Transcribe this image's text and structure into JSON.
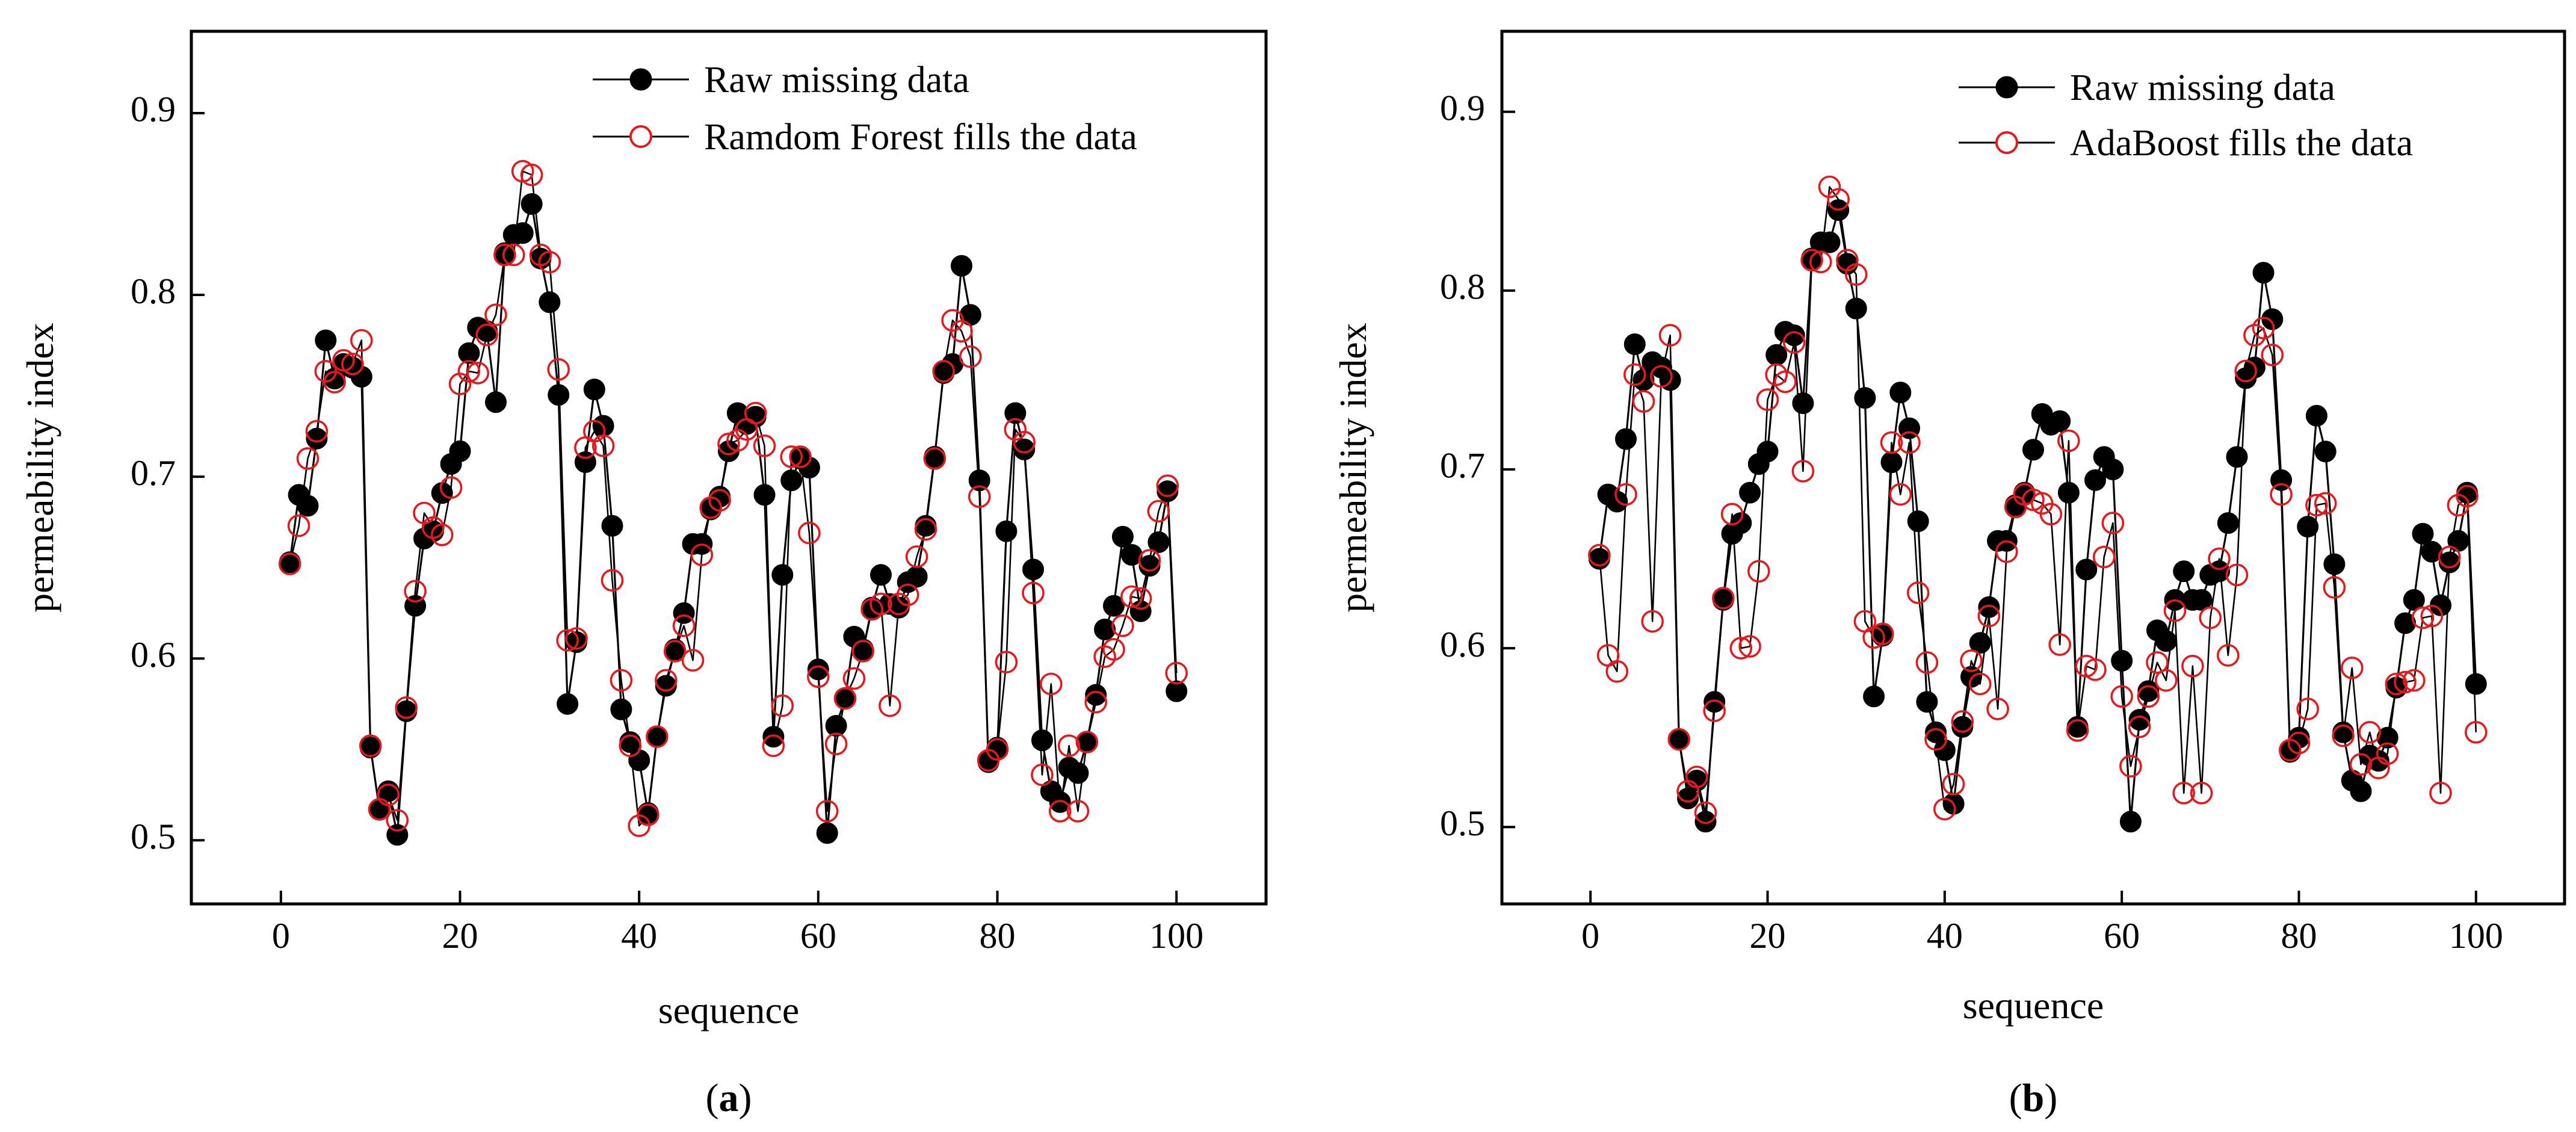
{
  "figure": {
    "panels": [
      {
        "label_open": "(",
        "label_letter": "a",
        "label_close": ")"
      },
      {
        "label_open": "(",
        "label_letter": "b",
        "label_close": ")"
      }
    ]
  },
  "chart_data": [
    {
      "type": "line",
      "title": "",
      "xlabel": "sequence",
      "ylabel": "permeability index",
      "xlim": [
        -10,
        110
      ],
      "ylim": [
        0.465,
        0.945
      ],
      "xticks": [
        0,
        20,
        40,
        60,
        80,
        100
      ],
      "yticks": [
        0.5,
        0.6,
        0.7,
        0.8,
        0.9
      ],
      "grid": false,
      "legend_position": "top-right",
      "x": [
        1,
        2,
        3,
        4,
        5,
        6,
        7,
        8,
        9,
        10,
        11,
        12,
        13,
        14,
        15,
        16,
        17,
        18,
        19,
        20,
        21,
        22,
        23,
        24,
        25,
        26,
        27,
        28,
        29,
        30,
        31,
        32,
        33,
        34,
        35,
        36,
        37,
        38,
        39,
        40,
        41,
        42,
        43,
        44,
        45,
        46,
        47,
        48,
        49,
        50,
        51,
        52,
        53,
        54,
        55,
        56,
        57,
        58,
        59,
        60,
        61,
        62,
        63,
        64,
        65,
        66,
        67,
        68,
        69,
        70,
        71,
        72,
        73,
        74,
        75,
        76,
        77,
        78,
        79,
        80,
        81,
        82,
        83,
        84,
        85,
        86,
        87,
        88,
        89,
        90,
        91,
        92,
        93,
        94,
        95,
        96,
        97,
        98,
        99,
        100
      ],
      "series": [
        {
          "name": "Raw missing data",
          "color": "#000000",
          "marker": "filled-circle",
          "values": [
            0.653,
            0.69,
            0.684,
            0.721,
            0.775,
            0.754,
            0.762,
            0.76,
            0.755,
            0.551,
            0.517,
            0.527,
            0.503,
            0.571,
            0.629,
            0.666,
            0.67,
            0.691,
            0.707,
            0.714,
            0.768,
            0.782,
            0.78,
            0.741,
            0.823,
            0.833,
            0.834,
            0.85,
            0.82,
            0.796,
            0.745,
            0.575,
            0.609,
            0.708,
            0.748,
            0.728,
            0.673,
            0.572,
            0.554,
            0.544,
            0.515,
            0.557,
            0.585,
            0.605,
            0.625,
            0.663,
            0.663,
            0.682,
            0.689,
            0.714,
            0.735,
            0.729,
            0.733,
            0.69,
            0.557,
            0.646,
            0.698,
            0.71,
            0.705,
            0.594,
            0.504,
            0.563,
            0.578,
            0.612,
            0.605,
            0.628,
            0.646,
            0.63,
            0.628,
            0.642,
            0.645,
            0.673,
            0.711,
            0.757,
            0.762,
            0.816,
            0.789,
            0.698,
            0.543,
            0.551,
            0.67,
            0.735,
            0.715,
            0.649,
            0.555,
            0.527,
            0.521,
            0.54,
            0.537,
            0.554,
            0.58,
            0.616,
            0.629,
            0.667,
            0.657,
            0.626,
            0.651,
            0.664,
            0.692,
            0.582
          ]
        },
        {
          "name": "Ramdom Forest fills the data",
          "color": "#e31a1c",
          "marker": "open-circle",
          "values": [
            0.652,
            0.673,
            0.71,
            0.725,
            0.758,
            0.752,
            0.764,
            0.762,
            0.775,
            0.552,
            0.517,
            0.525,
            0.511,
            0.573,
            0.637,
            0.68,
            0.672,
            0.668,
            0.694,
            0.751,
            0.758,
            0.757,
            0.778,
            0.789,
            0.822,
            0.822,
            0.868,
            0.866,
            0.822,
            0.818,
            0.759,
            0.61,
            0.611,
            0.716,
            0.725,
            0.717,
            0.643,
            0.588,
            0.552,
            0.508,
            0.514,
            0.557,
            0.588,
            0.604,
            0.618,
            0.599,
            0.657,
            0.683,
            0.687,
            0.718,
            0.72,
            0.726,
            0.735,
            0.717,
            0.552,
            0.574,
            0.711,
            0.711,
            0.669,
            0.59,
            0.516,
            0.553,
            0.578,
            0.589,
            0.604,
            0.627,
            0.63,
            0.574,
            0.63,
            0.635,
            0.656,
            0.671,
            0.71,
            0.758,
            0.786,
            0.78,
            0.766,
            0.689,
            0.544,
            0.55,
            0.598,
            0.726,
            0.719,
            0.636,
            0.536,
            0.586,
            0.516,
            0.552,
            0.516,
            0.554,
            0.576,
            0.601,
            0.605,
            0.618,
            0.634,
            0.633,
            0.654,
            0.681,
            0.695,
            0.592
          ]
        }
      ]
    },
    {
      "type": "line",
      "title": "",
      "xlabel": "sequence",
      "ylabel": "permeability index",
      "xlim": [
        -10,
        110
      ],
      "ylim": [
        0.457,
        0.945
      ],
      "xticks": [
        0,
        20,
        40,
        60,
        80,
        100
      ],
      "yticks": [
        0.5,
        0.6,
        0.7,
        0.8,
        0.9
      ],
      "grid": false,
      "legend_position": "top-right",
      "x": [
        1,
        2,
        3,
        4,
        5,
        6,
        7,
        8,
        9,
        10,
        11,
        12,
        13,
        14,
        15,
        16,
        17,
        18,
        19,
        20,
        21,
        22,
        23,
        24,
        25,
        26,
        27,
        28,
        29,
        30,
        31,
        32,
        33,
        34,
        35,
        36,
        37,
        38,
        39,
        40,
        41,
        42,
        43,
        44,
        45,
        46,
        47,
        48,
        49,
        50,
        51,
        52,
        53,
        54,
        55,
        56,
        57,
        58,
        59,
        60,
        61,
        62,
        63,
        64,
        65,
        66,
        67,
        68,
        69,
        70,
        71,
        72,
        73,
        74,
        75,
        76,
        77,
        78,
        79,
        80,
        81,
        82,
        83,
        84,
        85,
        86,
        87,
        88,
        89,
        90,
        91,
        92,
        93,
        94,
        95,
        96,
        97,
        98,
        99,
        100
      ],
      "series": [
        {
          "name": "Raw missing data",
          "color": "#000000",
          "marker": "filled-circle",
          "values": [
            0.65,
            0.686,
            0.682,
            0.717,
            0.77,
            0.75,
            0.76,
            0.757,
            0.75,
            0.549,
            0.516,
            0.526,
            0.503,
            0.57,
            0.627,
            0.664,
            0.67,
            0.687,
            0.703,
            0.71,
            0.764,
            0.777,
            0.775,
            0.737,
            0.818,
            0.827,
            0.827,
            0.845,
            0.815,
            0.79,
            0.74,
            0.573,
            0.607,
            0.704,
            0.743,
            0.723,
            0.671,
            0.57,
            0.553,
            0.543,
            0.513,
            0.556,
            0.584,
            0.603,
            0.623,
            0.66,
            0.66,
            0.68,
            0.687,
            0.711,
            0.731,
            0.725,
            0.727,
            0.687,
            0.556,
            0.644,
            0.694,
            0.707,
            0.7,
            0.593,
            0.503,
            0.56,
            0.576,
            0.61,
            0.604,
            0.627,
            0.643,
            0.627,
            0.627,
            0.641,
            0.643,
            0.67,
            0.707,
            0.751,
            0.757,
            0.81,
            0.784,
            0.694,
            0.542,
            0.55,
            0.668,
            0.73,
            0.71,
            0.647,
            0.553,
            0.526,
            0.52,
            0.54,
            0.537,
            0.55,
            0.578,
            0.614,
            0.627,
            0.664,
            0.654,
            0.624,
            0.648,
            0.66,
            0.687,
            0.58
          ]
        },
        {
          "name": "AdaBoost fills the data",
          "color": "#e31a1c",
          "marker": "open-circle",
          "values": [
            0.652,
            0.596,
            0.587,
            0.686,
            0.753,
            0.738,
            0.615,
            0.752,
            0.775,
            0.549,
            0.52,
            0.528,
            0.508,
            0.565,
            0.628,
            0.675,
            0.6,
            0.601,
            0.643,
            0.739,
            0.753,
            0.749,
            0.771,
            0.699,
            0.817,
            0.816,
            0.858,
            0.851,
            0.817,
            0.809,
            0.615,
            0.606,
            0.608,
            0.715,
            0.686,
            0.715,
            0.631,
            0.592,
            0.549,
            0.51,
            0.524,
            0.559,
            0.593,
            0.58,
            0.618,
            0.566,
            0.654,
            0.679,
            0.686,
            0.683,
            0.681,
            0.675,
            0.602,
            0.716,
            0.554,
            0.59,
            0.588,
            0.651,
            0.67,
            0.573,
            0.534,
            0.556,
            0.573,
            0.592,
            0.582,
            0.621,
            0.519,
            0.59,
            0.519,
            0.617,
            0.65,
            0.596,
            0.641,
            0.755,
            0.775,
            0.779,
            0.764,
            0.686,
            0.543,
            0.547,
            0.566,
            0.68,
            0.681,
            0.634,
            0.551,
            0.589,
            0.535,
            0.553,
            0.533,
            0.541,
            0.58,
            0.581,
            0.582,
            0.617,
            0.618,
            0.519,
            0.651,
            0.68,
            0.685,
            0.553
          ]
        }
      ]
    }
  ]
}
